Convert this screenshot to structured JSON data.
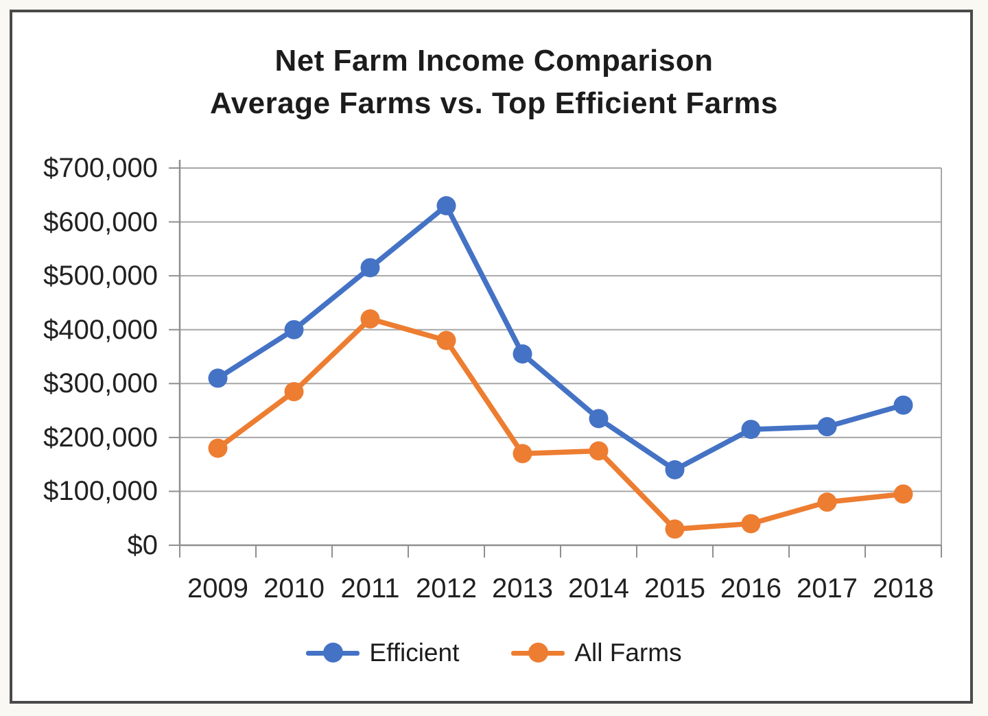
{
  "page": {
    "background_color": "#FAF8F3",
    "frame_border_color": "#4A4A4A",
    "plot_background_color": "#FFFFFF"
  },
  "title": {
    "line1": "Net Farm Income Comparison",
    "line2": "Average Farms vs. Top Efficient Farms"
  },
  "chart_data": {
    "type": "line",
    "title": "Net Farm Income Comparison Average Farms vs. Top Efficient Farms",
    "categories": [
      "2009",
      "2010",
      "2011",
      "2012",
      "2013",
      "2014",
      "2015",
      "2016",
      "2017",
      "2018"
    ],
    "series": [
      {
        "name": "Efficient",
        "color": "#4472C4",
        "values": [
          310000,
          400000,
          515000,
          630000,
          355000,
          235000,
          140000,
          215000,
          220000,
          260000
        ]
      },
      {
        "name": "All Farms",
        "color": "#ED7D31",
        "values": [
          180000,
          285000,
          420000,
          380000,
          170000,
          175000,
          30000,
          40000,
          80000,
          95000
        ]
      }
    ],
    "ylim": [
      0,
      700000
    ],
    "y_tick_step": 100000,
    "y_tick_labels_top_to_bottom": [
      "$700,000",
      "$600,000",
      "$500,000",
      "$400,000",
      "$300,000",
      "$200,000",
      "$100,000",
      "$0"
    ],
    "xlabel": "",
    "ylabel": "",
    "grid": "horizontal",
    "gridline_color": "#A6A6A6",
    "axis_color": "#8F8F8F",
    "legend_position": "bottom",
    "marker": "circle",
    "marker_radius": 14,
    "line_width": 7.5
  }
}
